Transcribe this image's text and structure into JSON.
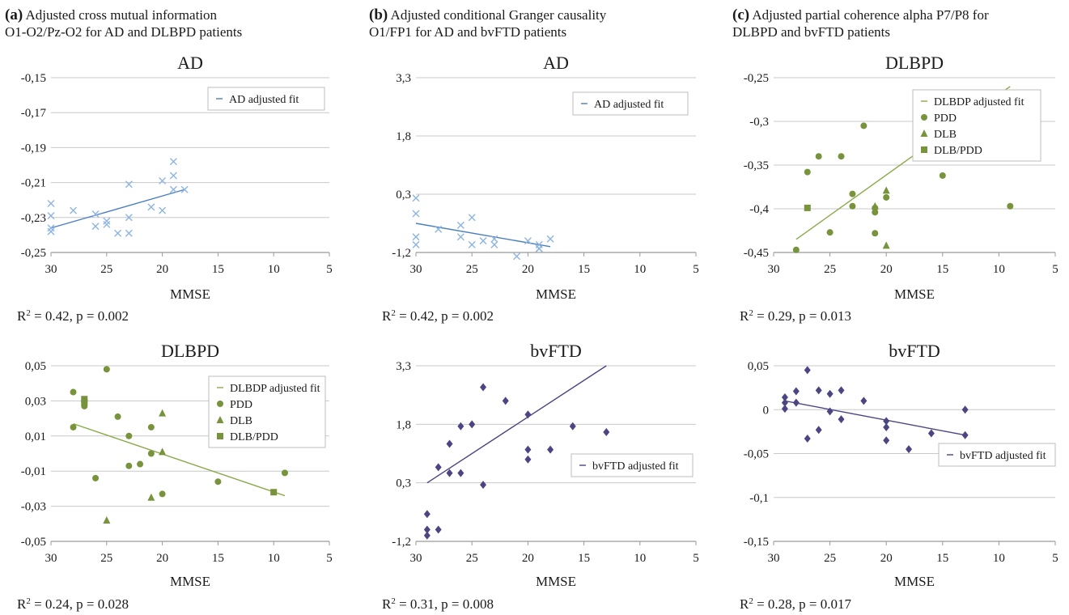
{
  "panels": [
    {
      "letter": "(a)",
      "title_line1": "Adjusted cross mutual information",
      "title_line2": "O1-O2/Pz-O2 for AD and DLBPD patients"
    },
    {
      "letter": "(b)",
      "title_line1": "Adjusted conditional Granger causality",
      "title_line2": "O1/FP1 for AD and bvFTD patients"
    },
    {
      "letter": "(c)",
      "title_line1": "Adjusted partial coherence alpha P7/P8 for",
      "title_line2": "DLBPD and bvFTD patients"
    }
  ],
  "colors": {
    "AD": "#8db4e2",
    "AD_line": "#4a7ec2",
    "DLBPD": "#77933c",
    "DLBPD_line": "#8aaa4a",
    "bvFTD": "#4b4582",
    "grid": "#c8c8c8"
  },
  "chart_data": [
    {
      "type": "scatter",
      "title": "AD",
      "xlabel": "MMSE",
      "ylabel": "",
      "xlim": [
        30,
        5
      ],
      "ylim": [
        -0.25,
        -0.15
      ],
      "xticks": [
        "30",
        "25",
        "20",
        "15",
        "10",
        "5"
      ],
      "yticks": [
        "-0,15",
        "-0,17",
        "-0,19",
        "-0,21",
        "-0,23",
        "-0,25"
      ],
      "stat": "0.42, p = 0.002",
      "legend": [
        {
          "label": "AD adjusted fit",
          "marker": "line"
        }
      ],
      "series": [
        {
          "name": "AD",
          "marker": "x",
          "color": "#8db4e2",
          "x": [
            30,
            30,
            30,
            30,
            28,
            26,
            26,
            25,
            25,
            24,
            23,
            23,
            23,
            21,
            20,
            20,
            19,
            19,
            19,
            18
          ],
          "y": [
            -0.222,
            -0.229,
            -0.236,
            -0.238,
            -0.226,
            -0.228,
            -0.235,
            -0.232,
            -0.234,
            -0.239,
            -0.211,
            -0.23,
            -0.239,
            -0.224,
            -0.209,
            -0.226,
            -0.198,
            -0.206,
            -0.214,
            -0.214
          ]
        }
      ],
      "fit": {
        "name": "AD adjusted fit",
        "color": "#4a7ec2",
        "x": [
          30,
          18
        ],
        "y": [
          -0.236,
          -0.214
        ]
      }
    },
    {
      "type": "scatter",
      "title": "AD",
      "xlabel": "MMSE",
      "ylabel": "",
      "xlim": [
        30,
        5
      ],
      "ylim": [
        -1.2,
        3.3
      ],
      "xticks": [
        "30",
        "25",
        "20",
        "15",
        "10",
        "5"
      ],
      "yticks": [
        "3,3",
        "1,8",
        "0,3",
        "-1,2"
      ],
      "stat": "0.42, p = 0.002",
      "legend": [
        {
          "label": "AD adjusted fit",
          "marker": "line"
        }
      ],
      "series": [
        {
          "name": "AD",
          "marker": "x",
          "color": "#8db4e2",
          "x": [
            30,
            30,
            30,
            30,
            28,
            26,
            26,
            25,
            25,
            24,
            23,
            23,
            21,
            20,
            19,
            19,
            19,
            18
          ],
          "y": [
            0.2,
            -0.2,
            -0.8,
            -1.0,
            -0.6,
            -0.5,
            -0.8,
            -0.3,
            -1.0,
            -0.9,
            -0.85,
            -1.0,
            -1.3,
            -0.9,
            -1.0,
            -1.1,
            -1.1,
            -0.85
          ]
        }
      ],
      "fit": {
        "name": "AD adjusted fit",
        "color": "#4a7ec2",
        "x": [
          30,
          18
        ],
        "y": [
          -0.45,
          -1.05
        ]
      }
    },
    {
      "type": "scatter",
      "title": "DLBPD",
      "xlabel": "MMSE",
      "ylabel": "",
      "xlim": [
        30,
        5
      ],
      "ylim": [
        -0.45,
        -0.25
      ],
      "xticks": [
        "30",
        "25",
        "20",
        "15",
        "10",
        "5"
      ],
      "yticks": [
        "-0,25",
        "-0,3",
        "-0,35",
        "-0,4",
        "-0,45"
      ],
      "stat": "0.29, p = 0.013",
      "legend": [
        {
          "label": "DLBDP adjusted fit",
          "marker": "line"
        },
        {
          "label": "PDD",
          "marker": "circle"
        },
        {
          "label": "DLB",
          "marker": "triangle"
        },
        {
          "label": "DLB/PDD",
          "marker": "square"
        }
      ],
      "series": [
        {
          "name": "PDD",
          "marker": "circle",
          "color": "#77933c",
          "x": [
            28,
            27,
            26,
            25,
            24,
            23,
            23,
            22,
            21,
            21,
            21,
            20,
            15,
            9
          ],
          "y": [
            -0.447,
            -0.358,
            -0.34,
            -0.427,
            -0.34,
            -0.383,
            -0.397,
            -0.305,
            -0.404,
            -0.428,
            -0.399,
            -0.387,
            -0.362,
            -0.397
          ]
        },
        {
          "name": "DLB",
          "marker": "triangle",
          "color": "#77933c",
          "x": [
            21,
            20,
            20
          ],
          "y": [
            -0.397,
            -0.379,
            -0.442
          ]
        },
        {
          "name": "DLB/PDD",
          "marker": "square",
          "color": "#77933c",
          "x": [
            27
          ],
          "y": [
            -0.399
          ]
        }
      ],
      "fit": {
        "name": "DLBDP adjusted fit",
        "color": "#8aaa4a",
        "x": [
          28,
          9
        ],
        "y": [
          -0.435,
          -0.26
        ]
      }
    },
    {
      "type": "scatter",
      "title": "DLBPD",
      "xlabel": "MMSE",
      "ylabel": "",
      "xlim": [
        30,
        5
      ],
      "ylim": [
        -0.05,
        0.05
      ],
      "xticks": [
        "30",
        "25",
        "20",
        "15",
        "10",
        "5"
      ],
      "yticks": [
        "0,05",
        "0,03",
        "0,01",
        "-0,01",
        "-0,03",
        "-0,05"
      ],
      "stat": "0.24, p = 0.028",
      "legend": [
        {
          "label": "DLBDP adjusted fit",
          "marker": "line"
        },
        {
          "label": "PDD",
          "marker": "circle"
        },
        {
          "label": "DLB",
          "marker": "triangle"
        },
        {
          "label": "DLB/PDD",
          "marker": "square"
        }
      ],
      "series": [
        {
          "name": "PDD",
          "marker": "circle",
          "color": "#77933c",
          "x": [
            28,
            28,
            27,
            26,
            25,
            24,
            23,
            23,
            22,
            21,
            21,
            20,
            15,
            9
          ],
          "y": [
            0.035,
            0.015,
            0.027,
            -0.014,
            0.048,
            0.021,
            0.01,
            -0.007,
            -0.006,
            0.015,
            0.0,
            -0.023,
            -0.016,
            -0.011
          ]
        },
        {
          "name": "DLB",
          "marker": "triangle",
          "color": "#77933c",
          "x": [
            25,
            21,
            20,
            20
          ],
          "y": [
            -0.038,
            -0.025,
            0.023,
            0.001
          ]
        },
        {
          "name": "DLB/PDD",
          "marker": "square",
          "color": "#77933c",
          "x": [
            27,
            27,
            10
          ],
          "y": [
            0.031,
            0.029,
            -0.022
          ]
        }
      ],
      "fit": {
        "name": "DLBDP adjusted fit",
        "color": "#8aaa4a",
        "x": [
          28,
          9
        ],
        "y": [
          0.017,
          -0.024
        ]
      }
    },
    {
      "type": "scatter",
      "title": "bvFTD",
      "xlabel": "MMSE",
      "ylabel": "",
      "xlim": [
        30,
        5
      ],
      "ylim": [
        -1.2,
        3.3
      ],
      "xticks": [
        "30",
        "25",
        "20",
        "15",
        "10",
        "5"
      ],
      "yticks": [
        "3,3",
        "1,8",
        "0,3",
        "-1,2"
      ],
      "stat": "0.31, p = 0.008",
      "legend": [
        {
          "label": "bvFTD adjusted fit",
          "marker": "line"
        }
      ],
      "series": [
        {
          "name": "bvFTD",
          "marker": "diamond",
          "color": "#4b4582",
          "x": [
            29,
            29,
            29,
            28,
            28,
            27,
            27,
            26,
            26,
            25,
            24,
            24,
            22,
            20,
            20,
            20,
            18,
            16,
            13
          ],
          "y": [
            -0.5,
            -0.9,
            -1.05,
            0.7,
            -0.9,
            1.3,
            0.55,
            1.75,
            0.55,
            1.8,
            2.75,
            0.25,
            2.4,
            2.05,
            1.15,
            0.9,
            1.15,
            1.75,
            1.6
          ]
        }
      ],
      "fit": {
        "name": "bvFTD adjusted fit",
        "color": "#4b4582",
        "x": [
          29,
          13
        ],
        "y": [
          0.3,
          3.3
        ]
      }
    },
    {
      "type": "scatter",
      "title": "bvFTD",
      "xlabel": "MMSE",
      "ylabel": "",
      "xlim": [
        30,
        5
      ],
      "ylim": [
        -0.15,
        0.05
      ],
      "xticks": [
        "30",
        "25",
        "20",
        "15",
        "10",
        "5"
      ],
      "yticks": [
        "0,05",
        "0",
        "-0,05",
        "-0,1",
        "-0,15"
      ],
      "stat": "0.28, p = 0.017",
      "legend": [
        {
          "label": "bvFTD adjusted fit",
          "marker": "line"
        }
      ],
      "series": [
        {
          "name": "bvFTD",
          "marker": "diamond",
          "color": "#4b4582",
          "x": [
            29,
            29,
            29,
            28,
            28,
            27,
            27,
            26,
            26,
            25,
            25,
            24,
            24,
            22,
            20,
            20,
            20,
            18,
            16,
            13,
            13
          ],
          "y": [
            0.014,
            0.008,
            0.001,
            0.021,
            0.008,
            0.045,
            -0.033,
            0.022,
            -0.023,
            0.018,
            -0.002,
            0.022,
            -0.011,
            0.01,
            -0.013,
            -0.02,
            -0.035,
            -0.045,
            -0.027,
            0.0,
            -0.029
          ]
        }
      ],
      "fit": {
        "name": "bvFTD adjusted fit",
        "color": "#4b4582",
        "x": [
          29,
          13
        ],
        "y": [
          0.01,
          -0.029
        ]
      }
    }
  ]
}
